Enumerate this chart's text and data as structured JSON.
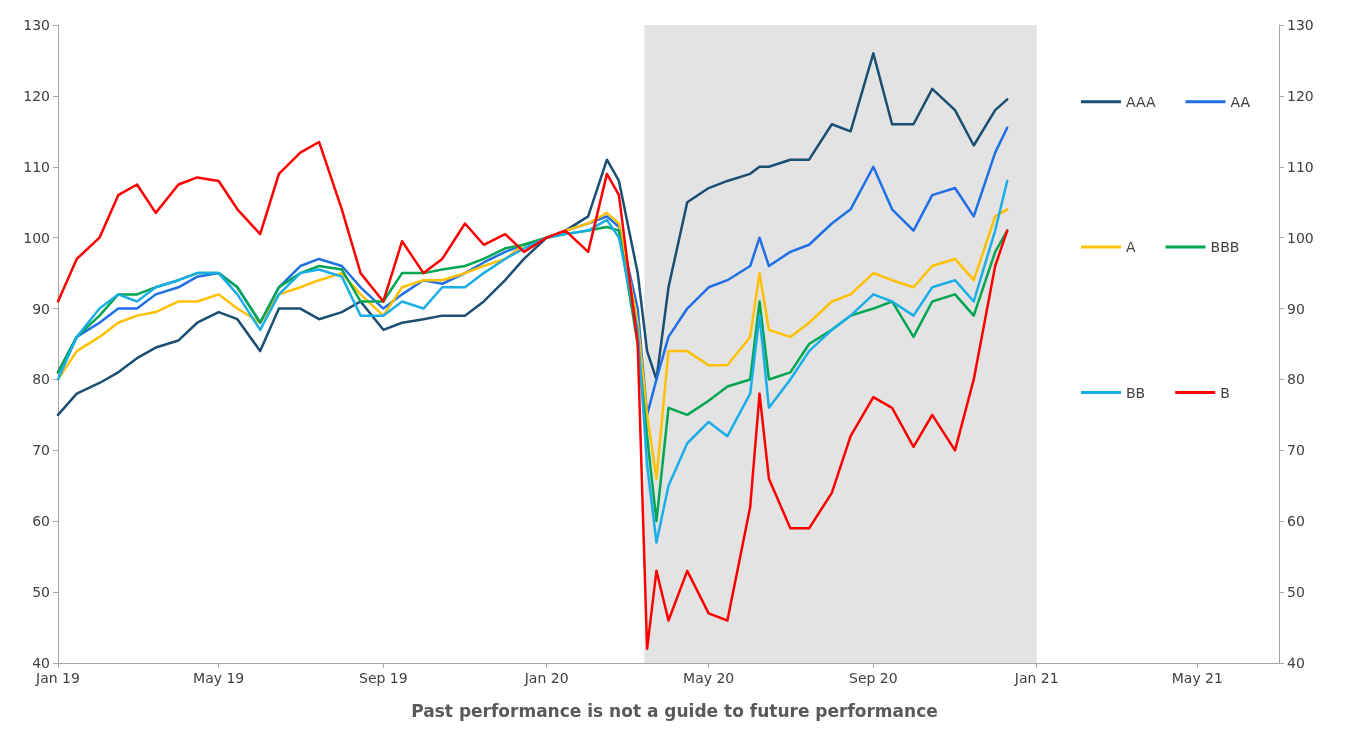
{
  "chart_data": {
    "type": "line",
    "annotations": [
      "Past performance is not a guide to future performance"
    ],
    "x": [
      "2019-01-01",
      "2019-01-15",
      "2019-02-01",
      "2019-02-15",
      "2019-03-01",
      "2019-03-15",
      "2019-04-01",
      "2019-04-15",
      "2019-05-01",
      "2019-05-15",
      "2019-06-01",
      "2019-06-15",
      "2019-07-01",
      "2019-07-15",
      "2019-08-01",
      "2019-08-15",
      "2019-09-01",
      "2019-09-15",
      "2019-10-01",
      "2019-10-15",
      "2019-11-01",
      "2019-11-15",
      "2019-12-01",
      "2019-12-15",
      "2020-01-01",
      "2020-01-15",
      "2020-02-01",
      "2020-02-15",
      "2020-02-24",
      "2020-03-09",
      "2020-03-16",
      "2020-03-23",
      "2020-04-01",
      "2020-04-15",
      "2020-05-01",
      "2020-05-15",
      "2020-06-01",
      "2020-06-08",
      "2020-06-15",
      "2020-07-01",
      "2020-07-15",
      "2020-08-01",
      "2020-08-15",
      "2020-09-01",
      "2020-09-15",
      "2020-10-01",
      "2020-10-15",
      "2020-11-01",
      "2020-11-15",
      "2020-12-01",
      "2020-12-10"
    ],
    "series": [
      {
        "name": "AAA",
        "color": "#1a4e73",
        "values": [
          75,
          78,
          79.5,
          81,
          83,
          84.5,
          85.5,
          88,
          89.5,
          88.5,
          84,
          90,
          90,
          88.5,
          89.5,
          91,
          87,
          88,
          88.5,
          89,
          89,
          91,
          94,
          97,
          100,
          101,
          103,
          111,
          108,
          95,
          84,
          80,
          93,
          105,
          107,
          108,
          109,
          110,
          110,
          111,
          111,
          116,
          115,
          126,
          116,
          116,
          121,
          118,
          113,
          118,
          119.5
        ]
      },
      {
        "name": "AA",
        "color": "#1f6fe6",
        "values": [
          81,
          86,
          88,
          90,
          90,
          92,
          93,
          94.5,
          95,
          93,
          88,
          93,
          96,
          97,
          96,
          93,
          90,
          92,
          94,
          93.5,
          95,
          96.5,
          98,
          99,
          100,
          101,
          102,
          103,
          101.5,
          90,
          75,
          80,
          86,
          90,
          93,
          94,
          96,
          100,
          96,
          98,
          99,
          102,
          104,
          110,
          104,
          101,
          106,
          107,
          103,
          112,
          115.5
        ]
      },
      {
        "name": "A",
        "color": "#ffc000",
        "values": [
          80,
          84,
          86,
          88,
          89,
          89.5,
          91,
          91,
          92,
          90,
          88,
          92,
          93,
          94,
          95,
          92,
          89,
          93,
          94,
          94,
          95,
          96,
          97,
          99,
          100,
          101,
          102,
          103.5,
          102,
          88,
          75,
          66,
          84,
          84,
          82,
          82,
          86,
          95,
          87,
          86,
          88,
          91,
          92,
          95,
          94,
          93,
          96,
          97,
          94,
          103,
          104
        ]
      },
      {
        "name": "BBB",
        "color": "#00a651",
        "values": [
          81,
          86,
          89,
          92,
          92,
          93,
          94,
          95,
          95,
          93,
          88,
          93,
          95,
          96,
          95.5,
          91,
          91,
          95,
          95,
          95.5,
          96,
          97,
          98.5,
          99,
          100,
          100.5,
          101,
          101.5,
          101,
          85,
          72,
          60,
          76,
          75,
          77,
          79,
          80,
          91,
          80,
          81,
          85,
          87,
          89,
          90,
          91,
          86,
          91,
          92,
          89,
          98,
          101
        ]
      },
      {
        "name": "BB",
        "color": "#1aaee8",
        "values": [
          80,
          86,
          90,
          92,
          91,
          93,
          94,
          95,
          95,
          92,
          87,
          92,
          95,
          95.5,
          94.5,
          89,
          89,
          91,
          90,
          93,
          93,
          95,
          97,
          98.5,
          100,
          100.5,
          101,
          102.5,
          100,
          87,
          68,
          57,
          65,
          71,
          74,
          72,
          78,
          89,
          76,
          80,
          84,
          87,
          89,
          92,
          91,
          89,
          93,
          94,
          91,
          101,
          108
        ]
      },
      {
        "name": "B",
        "color": "#ff0000",
        "values": [
          91,
          97,
          100,
          106,
          107.5,
          103.5,
          107.5,
          108.5,
          108,
          104,
          100.5,
          109,
          112,
          113.5,
          104,
          95,
          91,
          99.5,
          95,
          97,
          102,
          99,
          100.5,
          98,
          100,
          101,
          98,
          109,
          106,
          85,
          42,
          53,
          46,
          53,
          47,
          46,
          62,
          78,
          66,
          59,
          59,
          64,
          72,
          77.5,
          76,
          70.5,
          75,
          70,
          80,
          96,
          101
        ]
      }
    ],
    "xlim": [
      "2019-01-01",
      "2021-07-01"
    ],
    "xticks": [
      {
        "value": "2019-01-01",
        "label": "Jan 19"
      },
      {
        "value": "2019-05-01",
        "label": "May 19"
      },
      {
        "value": "2019-09-01",
        "label": "Sep 19"
      },
      {
        "value": "2020-01-01",
        "label": "Jan 20"
      },
      {
        "value": "2020-05-01",
        "label": "May 20"
      },
      {
        "value": "2020-09-01",
        "label": "Sep 20"
      },
      {
        "value": "2021-01-01",
        "label": "Jan 21"
      },
      {
        "value": "2021-05-01",
        "label": "May 21"
      }
    ],
    "ylim": [
      40,
      130
    ],
    "yticks": [
      40,
      50,
      60,
      70,
      80,
      90,
      100,
      110,
      120,
      130
    ],
    "y2lim": [
      40,
      130
    ],
    "y2ticks": [
      40,
      50,
      60,
      70,
      80,
      90,
      100,
      110,
      120,
      130
    ],
    "bands": [
      {
        "axis": "x",
        "from": "2020-03-14",
        "to": "2021-01-01",
        "color": "#e3e3e3"
      }
    ],
    "grid": false,
    "legend": "right",
    "line_style": "solid"
  }
}
